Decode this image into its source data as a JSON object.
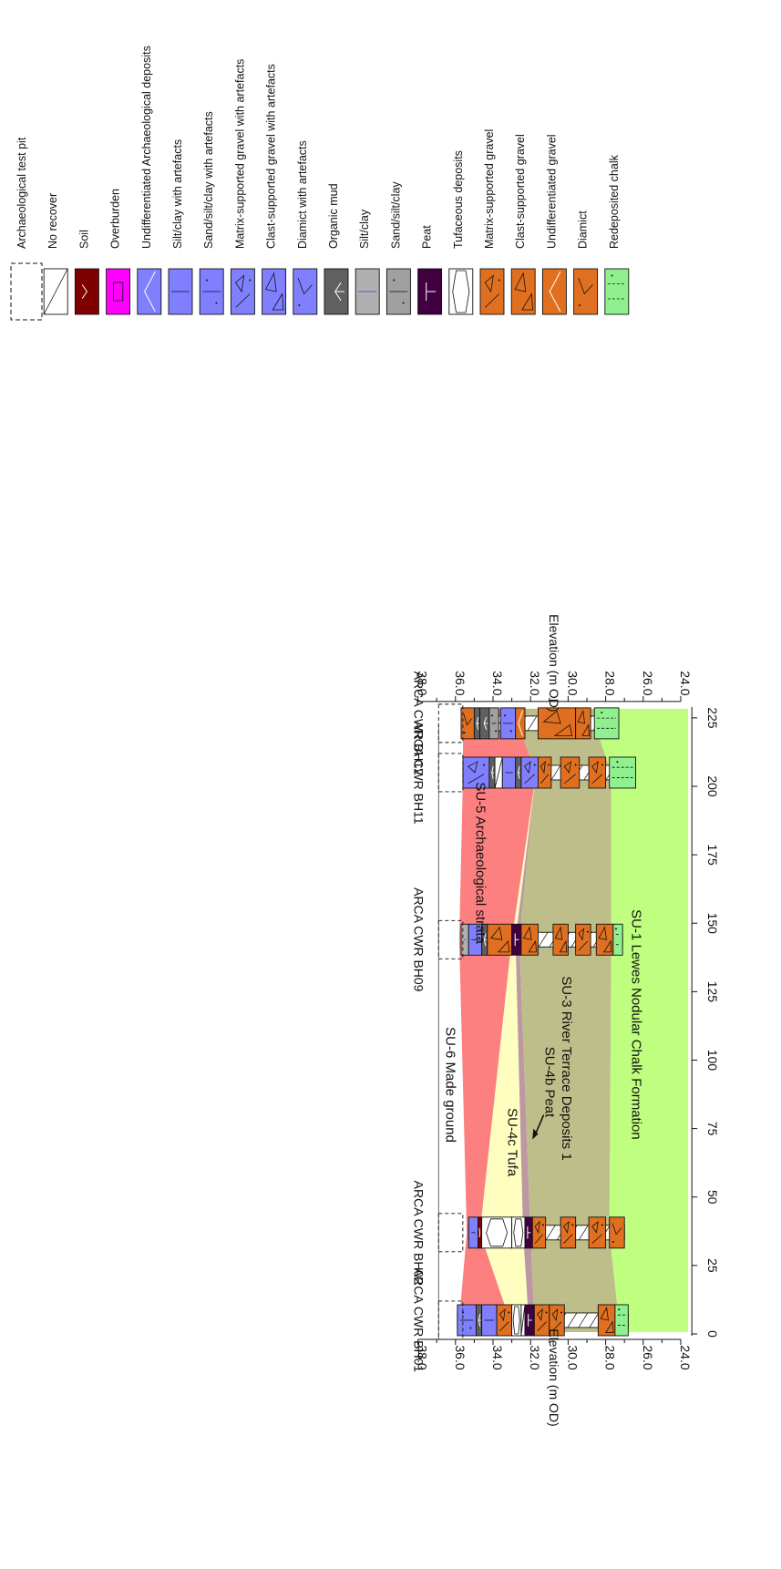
{
  "section": {
    "boreholes": [
      {
        "id": "bh01",
        "name": "ARCA CWR BH01",
        "distance": 5
      },
      {
        "id": "bh02",
        "name": "ARCA CWR BH02",
        "distance": 37
      },
      {
        "id": "bh09",
        "name": "ARCA CWR BH09",
        "distance": 144
      },
      {
        "id": "bh11",
        "name": "ARCA CWR BH11",
        "distance": 205
      },
      {
        "id": "bh12",
        "name": "ARCA CWR BH12",
        "distance": 223
      }
    ],
    "units": [
      {
        "id": "su6",
        "label": "SU-6 Made ground",
        "color": "#ffffff"
      },
      {
        "id": "su5",
        "label": "SU-5 Archaeological strata",
        "color": "#fd8080"
      },
      {
        "id": "su4c",
        "label": "SU-4c Tufa",
        "color": "#fefec0"
      },
      {
        "id": "su4b",
        "label": "SU-4b Peat",
        "color": "#bc99a2"
      },
      {
        "id": "su3",
        "label": "SU-3 River Terrace Deposits 1",
        "color": "#bebe8a"
      },
      {
        "id": "su1",
        "label": "SU-1 Lewes Nodular Chalk Formation",
        "color": "#bffe7f"
      }
    ]
  },
  "chart_data": {
    "type": "cross-section",
    "xlabel": "",
    "ylabel": "Elevation (m OD)",
    "x_ticks": [
      "0",
      "25",
      "50",
      "75",
      "100",
      "125",
      "150",
      "175",
      "200",
      "225"
    ],
    "y_ticks": [
      "24.0",
      "26.0",
      "28.0",
      "30.0",
      "32.0",
      "34.0",
      "36.0",
      "38.0"
    ],
    "xlim": [
      0,
      229
    ],
    "ylim": [
      23.7,
      38.2
    ],
    "unit_boundaries": {
      "distance": [
        5,
        37,
        144,
        205,
        223
      ],
      "su6_top": [
        36.9,
        36.9,
        36.9,
        36.9,
        36.9
      ],
      "su5_top": [
        35.8,
        35.4,
        35.8,
        35.6,
        35.6
      ],
      "su4c_top": [
        33.1,
        34.7,
        33.0,
        31.7,
        32.7
      ],
      "su4b_top": [
        32.1,
        32.4,
        32.8,
        31.7,
        32.7
      ],
      "su3_top": [
        31.8,
        32.0,
        32.6,
        31.7,
        32.7
      ],
      "su1_top": [
        27.3,
        27.8,
        27.7,
        27.7,
        28.6
      ]
    },
    "peat_arrow_label": "SU-4b Peat"
  },
  "legend": {
    "items": [
      {
        "label": "Archaeological test pit",
        "color": "#ffffff",
        "pattern": "dashed-outline"
      },
      {
        "label": "No recover",
        "color": "#ffffff",
        "pattern": "diagonal"
      },
      {
        "label": "Soil",
        "color": "#7f0000",
        "pattern": "check"
      },
      {
        "label": "Overburden",
        "color": "#ff00ff",
        "pattern": "square"
      },
      {
        "label": "Undifferentiated Archaeological deposits",
        "color": "#8080ff",
        "pattern": "chevron-white"
      },
      {
        "label": "Silt/clay with artefacts",
        "color": "#8080ff",
        "pattern": "line"
      },
      {
        "label": "Sand/silt/clay with artefacts",
        "color": "#8080ff",
        "pattern": "line-dots"
      },
      {
        "label": "Matrix-supported gravel with artefacts",
        "color": "#8080ff",
        "pattern": "matrix-gravel"
      },
      {
        "label": "Clast-supported gravel with artefacts",
        "color": "#8080ff",
        "pattern": "clast-gravel"
      },
      {
        "label": "Diamict with artefacts",
        "color": "#8080ff",
        "pattern": "diamict"
      },
      {
        "label": "Organic mud",
        "color": "#606060",
        "pattern": "roots"
      },
      {
        "label": "Silt/clay",
        "color": "#b0b0b0",
        "pattern": "line"
      },
      {
        "label": "Sand/silt/clay",
        "color": "#a0a0a0",
        "pattern": "line-dots"
      },
      {
        "label": "Peat",
        "color": "#40003f",
        "pattern": "peat"
      },
      {
        "label": "Tufaceous deposits",
        "color": "#ffffff",
        "pattern": "hex"
      },
      {
        "label": "Matrix-supported gravel",
        "color": "#e07020",
        "pattern": "matrix-gravel"
      },
      {
        "label": "Clast-supported gravel",
        "color": "#e07020",
        "pattern": "clast-gravel"
      },
      {
        "label": "Undifferentiated gravel",
        "color": "#e07020",
        "pattern": "chevron-white"
      },
      {
        "label": "Diamict",
        "color": "#e07020",
        "pattern": "diamict"
      },
      {
        "label": "Redeposited chalk",
        "color": "#90f090",
        "pattern": "chalk"
      }
    ]
  },
  "logs": {
    "bh01": [
      {
        "top": 35.9,
        "bottom": 34.9,
        "kind": "Sand/silt/clay with artefacts"
      },
      {
        "top": 34.9,
        "bottom": 34.6,
        "kind": "Organic mud"
      },
      {
        "top": 34.6,
        "bottom": 33.8,
        "kind": "Silt/clay with artefacts"
      },
      {
        "top": 33.8,
        "bottom": 33.0,
        "kind": "Matrix-supported gravel"
      },
      {
        "top": 33.0,
        "bottom": 32.5,
        "kind": "Tufaceous deposits"
      },
      {
        "top": 32.5,
        "bottom": 32.3,
        "kind": "No recover"
      },
      {
        "top": 32.3,
        "bottom": 31.8,
        "kind": "Peat"
      },
      {
        "top": 31.8,
        "bottom": 31.0,
        "kind": "Matrix-supported gravel"
      },
      {
        "top": 31.0,
        "bottom": 30.2,
        "kind": "Matrix-supported gravel"
      },
      {
        "top": 28.4,
        "bottom": 27.5,
        "kind": "Clast-supported gravel"
      },
      {
        "top": 27.5,
        "bottom": 26.8,
        "kind": "Redeposited chalk"
      }
    ],
    "bh02": [
      {
        "top": 35.3,
        "bottom": 34.8,
        "kind": "Silt/clay with artefacts"
      },
      {
        "top": 34.8,
        "bottom": 34.6,
        "kind": "Soil"
      },
      {
        "top": 34.6,
        "bottom": 33.0,
        "kind": "Tufaceous deposits"
      },
      {
        "top": 33.0,
        "bottom": 32.3,
        "kind": "Tufaceous deposits"
      },
      {
        "top": 32.3,
        "bottom": 31.9,
        "kind": "Peat"
      },
      {
        "top": 31.9,
        "bottom": 31.2,
        "kind": "Matrix-supported gravel"
      },
      {
        "top": 30.4,
        "bottom": 29.6,
        "kind": "Matrix-supported gravel"
      },
      {
        "top": 28.9,
        "bottom": 28.0,
        "kind": "Matrix-supported gravel"
      },
      {
        "top": 27.8,
        "bottom": 27.0,
        "kind": "Diamict"
      }
    ],
    "bh09": [
      {
        "top": 35.7,
        "bottom": 35.3,
        "kind": "Silt/clay"
      },
      {
        "top": 35.3,
        "bottom": 34.6,
        "kind": "Silt/clay with artefacts"
      },
      {
        "top": 34.6,
        "bottom": 34.3,
        "kind": "Organic mud"
      },
      {
        "top": 34.3,
        "bottom": 33.0,
        "kind": "Clast-supported gravel"
      },
      {
        "top": 33.0,
        "bottom": 32.5,
        "kind": "Peat"
      },
      {
        "top": 32.5,
        "bottom": 31.6,
        "kind": "Clast-supported gravel"
      },
      {
        "top": 30.8,
        "bottom": 30.0,
        "kind": "Clast-supported gravel"
      },
      {
        "top": 29.6,
        "bottom": 28.8,
        "kind": "Matrix-supported gravel"
      },
      {
        "top": 28.5,
        "bottom": 27.6,
        "kind": "Clast-supported gravel"
      },
      {
        "top": 27.6,
        "bottom": 27.1,
        "kind": "Redeposited chalk"
      }
    ],
    "bh11": [
      {
        "top": 35.6,
        "bottom": 34.2,
        "kind": "Matrix-supported gravel with artefacts"
      },
      {
        "top": 34.2,
        "bottom": 33.9,
        "kind": "Organic mud"
      },
      {
        "top": 33.9,
        "bottom": 33.5,
        "kind": "No recover"
      },
      {
        "top": 33.5,
        "bottom": 32.8,
        "kind": "Silt/clay with artefacts"
      },
      {
        "top": 32.8,
        "bottom": 32.5,
        "kind": "Organic mud"
      },
      {
        "top": 32.5,
        "bottom": 31.6,
        "kind": "Matrix-supported gravel with artefacts"
      },
      {
        "top": 31.6,
        "bottom": 30.9,
        "kind": "Matrix-supported gravel"
      },
      {
        "top": 30.4,
        "bottom": 29.4,
        "kind": "Matrix-supported gravel"
      },
      {
        "top": 28.9,
        "bottom": 28.0,
        "kind": "Matrix-supported gravel"
      },
      {
        "top": 27.8,
        "bottom": 26.4,
        "kind": "Redeposited chalk"
      }
    ],
    "bh12": [
      {
        "top": 35.7,
        "bottom": 35.0,
        "kind": "Diamict"
      },
      {
        "top": 35.0,
        "bottom": 34.7,
        "kind": "Organic mud"
      },
      {
        "top": 34.7,
        "bottom": 34.2,
        "kind": "Organic mud"
      },
      {
        "top": 34.2,
        "bottom": 33.7,
        "kind": "Sand/silt/clay"
      },
      {
        "top": 33.6,
        "bottom": 32.8,
        "kind": "Sand/silt/clay with artefacts"
      },
      {
        "top": 32.8,
        "bottom": 32.3,
        "kind": "Undifferentiated gravel"
      },
      {
        "top": 31.6,
        "bottom": 29.6,
        "kind": "Clast-supported gravel"
      },
      {
        "top": 29.6,
        "bottom": 28.8,
        "kind": "Clast-supported gravel"
      },
      {
        "top": 28.6,
        "bottom": 27.3,
        "kind": "Redeposited chalk"
      }
    ]
  }
}
